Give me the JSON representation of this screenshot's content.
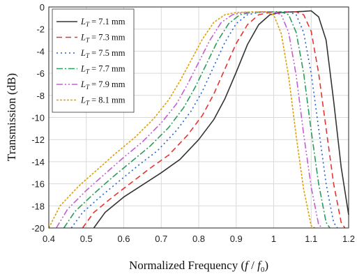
{
  "chart_data": {
    "type": "line",
    "xlabel": "Normalized Frequency (f / f0)",
    "xlabel_parts": [
      "Normalized Frequency (",
      "f",
      " / ",
      "f",
      "0",
      ")"
    ],
    "ylabel": "Transmission (dB)",
    "xlim": [
      0.4,
      1.2
    ],
    "ylim": [
      -20,
      0
    ],
    "xticks": [
      0.4,
      0.5,
      0.6,
      0.7,
      0.8,
      0.9,
      1.0,
      1.1,
      1.2
    ],
    "xtick_labels": [
      "0.4",
      "0.5",
      "0.6",
      "0.7",
      "0.8",
      "0.9",
      "1",
      "1.1",
      "1.2"
    ],
    "yticks": [
      0,
      -2,
      -4,
      -6,
      -8,
      -10,
      -12,
      -14,
      -16,
      -18,
      -20
    ],
    "ytick_labels": [
      "0",
      "-2",
      "-4",
      "-6",
      "-8",
      "-10",
      "-12",
      "-14",
      "-16",
      "-18",
      "-20"
    ],
    "grid": true,
    "legend_position": "top-left",
    "series": [
      {
        "name": "LT = 7.1 mm",
        "legend_prefix": "L",
        "legend_sub": "T",
        "legend_value": " = 7.1 mm",
        "color": "#333333",
        "dash": "",
        "points": [
          [
            0.52,
            -20
          ],
          [
            0.55,
            -18.6
          ],
          [
            0.6,
            -17.2
          ],
          [
            0.65,
            -16.1
          ],
          [
            0.7,
            -15
          ],
          [
            0.75,
            -13.8
          ],
          [
            0.8,
            -12
          ],
          [
            0.84,
            -10.2
          ],
          [
            0.87,
            -8.3
          ],
          [
            0.9,
            -5.9
          ],
          [
            0.93,
            -3.4
          ],
          [
            0.96,
            -1.6
          ],
          [
            0.99,
            -0.7
          ],
          [
            1.02,
            -0.5
          ],
          [
            1.05,
            -0.45
          ],
          [
            1.08,
            -0.4
          ],
          [
            1.1,
            -0.35
          ],
          [
            1.12,
            -0.9
          ],
          [
            1.14,
            -3
          ],
          [
            1.16,
            -8.5
          ],
          [
            1.18,
            -14.5
          ],
          [
            1.2,
            -18.8
          ]
        ]
      },
      {
        "name": "LT = 7.3 mm",
        "legend_prefix": "L",
        "legend_sub": "T",
        "legend_value": " = 7.3 mm",
        "color": "#e63232",
        "dash": "8,5",
        "points": [
          [
            0.49,
            -20
          ],
          [
            0.52,
            -18.6
          ],
          [
            0.57,
            -17.2
          ],
          [
            0.62,
            -15.9
          ],
          [
            0.67,
            -14.6
          ],
          [
            0.72,
            -13.4
          ],
          [
            0.77,
            -11.6
          ],
          [
            0.81,
            -9.8
          ],
          [
            0.84,
            -7.9
          ],
          [
            0.87,
            -5.6
          ],
          [
            0.9,
            -3.3
          ],
          [
            0.93,
            -1.6
          ],
          [
            0.96,
            -0.7
          ],
          [
            0.99,
            -0.5
          ],
          [
            1.03,
            -0.45
          ],
          [
            1.06,
            -0.45
          ],
          [
            1.08,
            -0.7
          ],
          [
            1.1,
            -2.2
          ],
          [
            1.12,
            -6
          ],
          [
            1.14,
            -11
          ],
          [
            1.16,
            -16
          ],
          [
            1.18,
            -19.5
          ],
          [
            1.19,
            -20
          ]
        ]
      },
      {
        "name": "LT = 7.5 mm",
        "legend_prefix": "L",
        "legend_sub": "T",
        "legend_value": " = 7.5 mm",
        "color": "#1f5fd6",
        "dash": "2,4",
        "points": [
          [
            0.46,
            -20
          ],
          [
            0.49,
            -18.6
          ],
          [
            0.54,
            -17.1
          ],
          [
            0.59,
            -15.7
          ],
          [
            0.64,
            -14.3
          ],
          [
            0.69,
            -13
          ],
          [
            0.74,
            -11.2
          ],
          [
            0.78,
            -9.4
          ],
          [
            0.81,
            -7.6
          ],
          [
            0.84,
            -5.4
          ],
          [
            0.87,
            -3.2
          ],
          [
            0.9,
            -1.5
          ],
          [
            0.93,
            -0.7
          ],
          [
            0.96,
            -0.5
          ],
          [
            1.0,
            -0.45
          ],
          [
            1.04,
            -0.45
          ],
          [
            1.06,
            -0.7
          ],
          [
            1.08,
            -2.3
          ],
          [
            1.1,
            -6
          ],
          [
            1.12,
            -11
          ],
          [
            1.14,
            -16
          ],
          [
            1.16,
            -19.5
          ],
          [
            1.17,
            -20
          ]
        ]
      },
      {
        "name": "LT = 7.7 mm",
        "legend_prefix": "L",
        "legend_sub": "T",
        "legend_value": " = 7.7 mm",
        "color": "#2a9d5a",
        "dash": "9,3,2,3",
        "points": [
          [
            0.44,
            -20
          ],
          [
            0.47,
            -18.5
          ],
          [
            0.52,
            -16.9
          ],
          [
            0.57,
            -15.4
          ],
          [
            0.62,
            -14
          ],
          [
            0.67,
            -12.6
          ],
          [
            0.72,
            -10.9
          ],
          [
            0.76,
            -9.1
          ],
          [
            0.79,
            -7.3
          ],
          [
            0.82,
            -5.2
          ],
          [
            0.85,
            -3.1
          ],
          [
            0.88,
            -1.5
          ],
          [
            0.91,
            -0.7
          ],
          [
            0.94,
            -0.5
          ],
          [
            0.98,
            -0.45
          ],
          [
            1.02,
            -0.45
          ],
          [
            1.04,
            -0.7
          ],
          [
            1.06,
            -2.3
          ],
          [
            1.08,
            -6
          ],
          [
            1.1,
            -11.2
          ],
          [
            1.12,
            -16
          ],
          [
            1.14,
            -19.5
          ],
          [
            1.15,
            -20
          ]
        ]
      },
      {
        "name": "LT = 7.9 mm",
        "legend_prefix": "L",
        "legend_sub": "T",
        "legend_value": " = 7.9 mm",
        "color": "#c45cd6",
        "dash": "9,3,2,3,2,3",
        "points": [
          [
            0.42,
            -20
          ],
          [
            0.45,
            -18.3
          ],
          [
            0.5,
            -16.6
          ],
          [
            0.55,
            -15.1
          ],
          [
            0.6,
            -13.6
          ],
          [
            0.65,
            -12.2
          ],
          [
            0.7,
            -10.5
          ],
          [
            0.74,
            -8.8
          ],
          [
            0.77,
            -7
          ],
          [
            0.8,
            -5
          ],
          [
            0.83,
            -3
          ],
          [
            0.86,
            -1.4
          ],
          [
            0.89,
            -0.7
          ],
          [
            0.92,
            -0.5
          ],
          [
            0.96,
            -0.45
          ],
          [
            1.0,
            -0.45
          ],
          [
            1.02,
            -0.7
          ],
          [
            1.04,
            -2.3
          ],
          [
            1.06,
            -6.2
          ],
          [
            1.08,
            -11.5
          ],
          [
            1.1,
            -16.3
          ],
          [
            1.12,
            -19.7
          ],
          [
            1.13,
            -20
          ]
        ]
      },
      {
        "name": "LT = 8.1 mm",
        "legend_prefix": "L",
        "legend_sub": "T",
        "legend_value": " = 8.1 mm",
        "color": "#e0a000",
        "dash": "3,2",
        "points": [
          [
            0.4,
            -20
          ],
          [
            0.43,
            -18
          ],
          [
            0.48,
            -16.2
          ],
          [
            0.53,
            -14.7
          ],
          [
            0.58,
            -13.2
          ],
          [
            0.63,
            -11.8
          ],
          [
            0.68,
            -10.1
          ],
          [
            0.72,
            -8.4
          ],
          [
            0.75,
            -6.7
          ],
          [
            0.78,
            -4.8
          ],
          [
            0.81,
            -2.9
          ],
          [
            0.84,
            -1.4
          ],
          [
            0.87,
            -0.7
          ],
          [
            0.9,
            -0.5
          ],
          [
            0.94,
            -0.45
          ],
          [
            0.98,
            -0.45
          ],
          [
            1.0,
            -0.7
          ],
          [
            1.02,
            -2.4
          ],
          [
            1.04,
            -6.3
          ],
          [
            1.06,
            -11.7
          ],
          [
            1.08,
            -16.5
          ],
          [
            1.1,
            -19.8
          ],
          [
            1.11,
            -20
          ]
        ]
      }
    ]
  }
}
